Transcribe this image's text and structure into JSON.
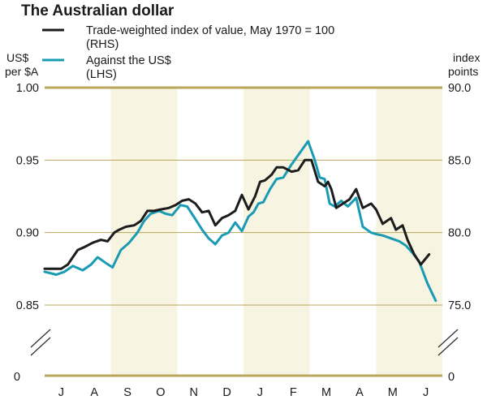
{
  "chart_data": {
    "type": "line",
    "title": "The Australian dollar",
    "left_axis_label": [
      "US$",
      "per $A"
    ],
    "right_axis_label": [
      "index",
      "points"
    ],
    "left_axis": {
      "range": [
        0.85,
        1.0
      ],
      "ticks": [
        "1.00",
        "0.95",
        "0.90",
        "0.85"
      ],
      "tick_values": [
        1.0,
        0.95,
        0.9,
        0.85
      ],
      "zero_label": "0"
    },
    "right_axis": {
      "range": [
        75,
        90
      ],
      "ticks": [
        "90.0",
        "85.0",
        "80.0",
        "75.0"
      ],
      "tick_values": [
        90,
        85,
        80,
        75
      ],
      "zero_label": "0"
    },
    "x_categories": [
      "J",
      "A",
      "S",
      "O",
      "N",
      "D",
      "J",
      "F",
      "M",
      "A",
      "M",
      "J"
    ],
    "shaded_months": [
      2,
      3,
      6,
      7,
      10,
      11
    ],
    "colors": {
      "twi": "#1c1c1c",
      "usd": "#1a9bb4",
      "band": "#f7f4e2",
      "axis": "#b9a65a"
    },
    "series": [
      {
        "name": "Trade-weighted index of value, May 1970 = 100",
        "legend_label": "Trade-weighted index of value, May 1970 = 100",
        "legend_sub": "(RHS)",
        "axis": "right",
        "color_key": "twi",
        "x": [
          0,
          0.3,
          0.5,
          0.7,
          0.85,
          1.0,
          1.2,
          1.45,
          1.7,
          1.9,
          2.1,
          2.25,
          2.45,
          2.7,
          2.9,
          3.1,
          3.3,
          3.5,
          3.75,
          3.95,
          4.15,
          4.35,
          4.55,
          4.75,
          4.95,
          5.15,
          5.35,
          5.55,
          5.75,
          5.95,
          6.15,
          6.35,
          6.5,
          6.65,
          6.85,
          7.0,
          7.2,
          7.45,
          7.65,
          7.85,
          8.05,
          8.25,
          8.45,
          8.55,
          8.65,
          8.8,
          9.0,
          9.2,
          9.4,
          9.6,
          9.85,
          10.0,
          10.2,
          10.45,
          10.6,
          10.8,
          10.95,
          11.15,
          11.35,
          11.6
        ],
        "values": [
          77.5,
          77.5,
          77.5,
          77.8,
          78.3,
          78.8,
          79.0,
          79.3,
          79.5,
          79.4,
          80.0,
          80.2,
          80.4,
          80.5,
          80.8,
          81.5,
          81.5,
          81.6,
          81.7,
          81.9,
          82.2,
          82.3,
          82.0,
          81.4,
          81.5,
          80.5,
          81.0,
          81.2,
          81.5,
          82.6,
          81.6,
          82.5,
          83.5,
          83.6,
          84.0,
          84.5,
          84.5,
          84.2,
          84.3,
          85.0,
          85.0,
          83.5,
          83.2,
          83.5,
          83.0,
          81.7,
          82.0,
          82.3,
          83.0,
          81.7,
          82.0,
          81.6,
          80.6,
          81.0,
          80.2,
          80.5,
          79.5,
          78.5,
          77.8,
          78.5
        ]
      },
      {
        "name": "Against the US$",
        "legend_label": "Against the US$",
        "legend_sub": "(LHS)",
        "axis": "left",
        "color_key": "usd",
        "x": [
          0,
          0.35,
          0.6,
          0.85,
          1.15,
          1.4,
          1.6,
          1.85,
          2.05,
          2.3,
          2.55,
          2.8,
          3.0,
          3.2,
          3.45,
          3.65,
          3.85,
          4.1,
          4.3,
          4.5,
          4.75,
          4.95,
          5.15,
          5.35,
          5.55,
          5.75,
          5.95,
          6.15,
          6.3,
          6.45,
          6.6,
          6.8,
          7.0,
          7.2,
          7.45,
          7.7,
          7.95,
          8.15,
          8.3,
          8.45,
          8.6,
          8.75,
          8.95,
          9.15,
          9.4,
          9.6,
          9.85,
          10.0,
          10.2,
          10.45,
          10.7,
          10.9,
          11.1,
          11.3,
          11.55,
          11.8
        ],
        "values": [
          0.873,
          0.871,
          0.873,
          0.877,
          0.874,
          0.878,
          0.883,
          0.879,
          0.876,
          0.888,
          0.893,
          0.9,
          0.908,
          0.913,
          0.915,
          0.913,
          0.912,
          0.919,
          0.918,
          0.911,
          0.902,
          0.896,
          0.892,
          0.898,
          0.9,
          0.907,
          0.901,
          0.911,
          0.914,
          0.92,
          0.921,
          0.93,
          0.937,
          0.938,
          0.947,
          0.955,
          0.963,
          0.95,
          0.938,
          0.937,
          0.92,
          0.918,
          0.922,
          0.918,
          0.924,
          0.904,
          0.9,
          0.899,
          0.898,
          0.896,
          0.894,
          0.891,
          0.886,
          0.88,
          0.865,
          0.853
        ]
      }
    ]
  }
}
